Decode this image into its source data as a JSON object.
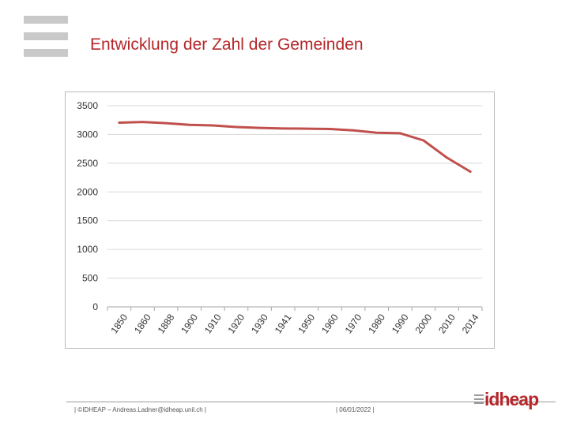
{
  "slide": {
    "title": "Entwicklung der Zahl der Gemeinden"
  },
  "footer": {
    "left": "| ©IDHEAP – Andreas.Ladner@idheap.unil.ch |",
    "date": "| 06/01/2022 |",
    "logo_text": "idheap"
  },
  "colors": {
    "accent": "#b5272b",
    "line": "#c0504d",
    "grid": "#d9d9d9"
  },
  "chart_data": {
    "type": "line",
    "title": "",
    "xlabel": "",
    "ylabel": "",
    "categories": [
      "1850",
      "1860",
      "1888",
      "1900",
      "1910",
      "1920",
      "1930",
      "1941",
      "1950",
      "1960",
      "1970",
      "1980",
      "1990",
      "2000",
      "2010",
      "2014"
    ],
    "series": [
      {
        "values": [
          3205,
          3217,
          3196,
          3166,
          3157,
          3130,
          3114,
          3104,
          3101,
          3095,
          3072,
          3029,
          3021,
          2896,
          2596,
          2352
        ]
      }
    ],
    "ylim": [
      0,
      3500
    ],
    "yticks": [
      0,
      500,
      1000,
      1500,
      2000,
      2500,
      3000,
      3500
    ],
    "grid": true,
    "legend": "none"
  }
}
